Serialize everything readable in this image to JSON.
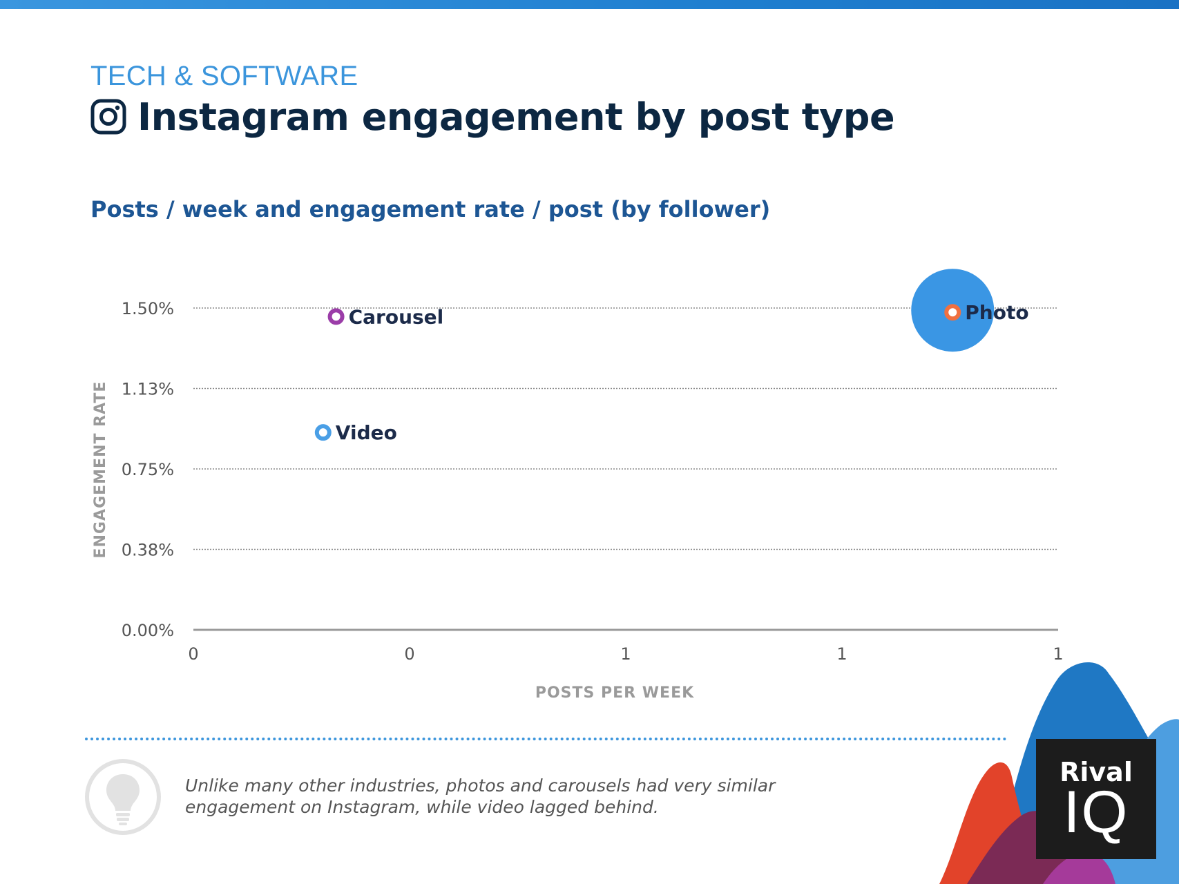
{
  "header": {
    "eyebrow": "TECH & SOFTWARE",
    "title": "Instagram engagement by post type",
    "subtitle": "Posts / week and engagement rate / post (by follower)"
  },
  "chart_data": {
    "type": "scatter",
    "xlabel": "POSTS PER WEEK",
    "ylabel": "ENGAGEMENT RATE",
    "x_ticks": [
      {
        "value": 0,
        "label": "0"
      },
      {
        "value": 0.25,
        "label": "0"
      },
      {
        "value": 0.5,
        "label": "1"
      },
      {
        "value": 0.75,
        "label": "1"
      },
      {
        "value": 1.0,
        "label": "1"
      }
    ],
    "y_ticks": [
      {
        "value": 0,
        "label": "0.00%"
      },
      {
        "value": 0.375,
        "label": "0.38%"
      },
      {
        "value": 0.75,
        "label": "0.75%"
      },
      {
        "value": 1.125,
        "label": "1.13%"
      },
      {
        "value": 1.5,
        "label": "1.50%"
      }
    ],
    "xlim": [
      0,
      1.0
    ],
    "ylim": [
      0,
      1.5
    ],
    "grid": true,
    "points": [
      {
        "name": "Carousel",
        "x": 0.165,
        "y": 1.46,
        "size": 0,
        "color": "#9b3da8"
      },
      {
        "name": "Video",
        "x": 0.15,
        "y": 0.92,
        "size": 0,
        "color": "#4a9fe6"
      },
      {
        "name": "Photo",
        "x": 0.878,
        "y": 1.48,
        "size": 1,
        "color": "#f07040",
        "bubble_color": "#3a96e4"
      }
    ]
  },
  "footer": {
    "insight": "Unlike many other industries, photos and carousels had very similar engagement on Instagram, while video lagged behind.",
    "logo_top": "Rival",
    "logo_bottom": "IQ"
  },
  "colors": {
    "accent": "#3b95dc",
    "title": "#0c2742",
    "subtitle": "#1d5694"
  },
  "icons": {
    "title_icon": "instagram-icon",
    "insight_icon": "lightbulb-icon"
  }
}
